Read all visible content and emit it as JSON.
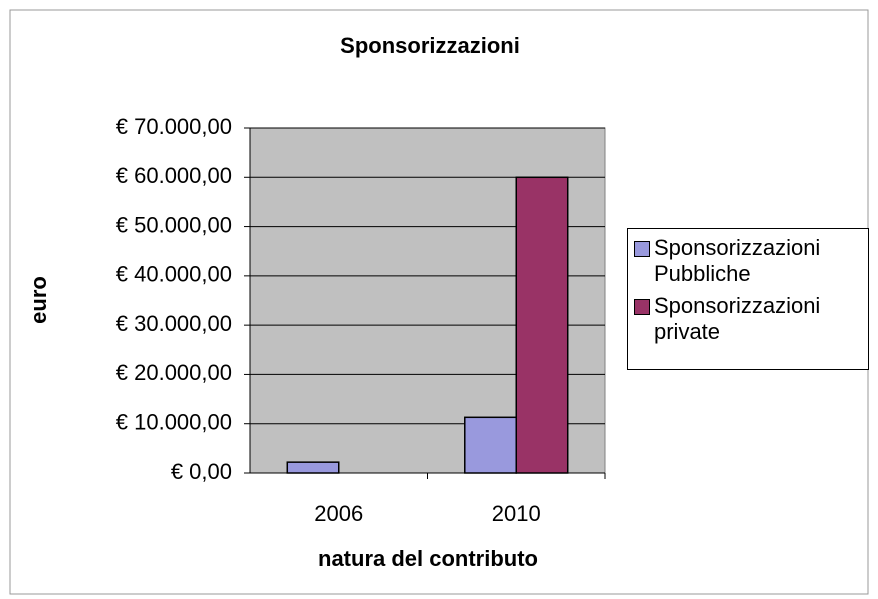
{
  "chart_data": {
    "type": "bar",
    "title": "Sponsorizzazioni",
    "y_label": "euro",
    "x_label": "natura del contributo",
    "categories": [
      "2006",
      "2010"
    ],
    "series": [
      {
        "name": "Sponsorizzazioni Pubbliche",
        "color": "#9999dd",
        "values": [
          2200,
          11300
        ]
      },
      {
        "name": "Sponsorizzazioni private",
        "color": "#993366",
        "values": [
          0,
          60000
        ]
      }
    ],
    "ylim": [
      0,
      70000
    ],
    "yticks": [
      {
        "value": 0,
        "label": "€ 0,00"
      },
      {
        "value": 10000,
        "label": "€ 10.000,00"
      },
      {
        "value": 20000,
        "label": "€ 20.000,00"
      },
      {
        "value": 30000,
        "label": "€ 30.000,00"
      },
      {
        "value": 40000,
        "label": "€ 40.000,00"
      },
      {
        "value": 50000,
        "label": "€ 50.000,00"
      },
      {
        "value": 60000,
        "label": "€ 60.000,00"
      },
      {
        "value": 70000,
        "label": "€ 70.000,00"
      }
    ],
    "grid": true,
    "legend": "right"
  }
}
